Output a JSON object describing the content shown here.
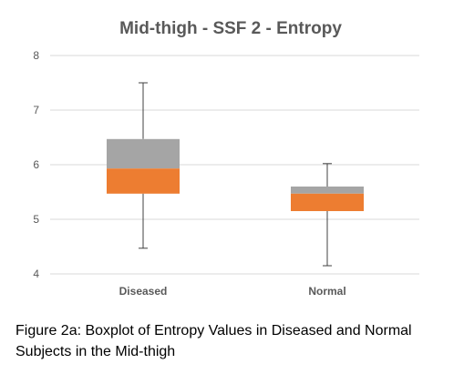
{
  "chart_data": {
    "type": "boxplot",
    "title": "Mid-thigh - SSF 2 - Entropy",
    "xlabel": "",
    "ylabel": "",
    "ylim": [
      4,
      8
    ],
    "yticks": [
      "4",
      "5",
      "6",
      "7",
      "8"
    ],
    "grid": true,
    "categories": [
      "Diseased",
      "Normal"
    ],
    "boxes": [
      {
        "category": "Diseased",
        "min": 4.47,
        "q1": 5.47,
        "median": 5.93,
        "q3": 6.47,
        "max": 7.5
      },
      {
        "category": "Normal",
        "min": 4.15,
        "q1": 5.15,
        "median": 5.47,
        "q3": 5.6,
        "max": 6.02
      }
    ],
    "colors": {
      "lower_box": "#ED7D31",
      "upper_box": "#A5A5A5",
      "gridline": "#D9D9D9",
      "whisker": "#404040"
    }
  },
  "caption": {
    "line1": "Figure 2a: Boxplot of Entropy Values in Diseased and Normal",
    "line2": "Subjects in the Mid-thigh"
  }
}
